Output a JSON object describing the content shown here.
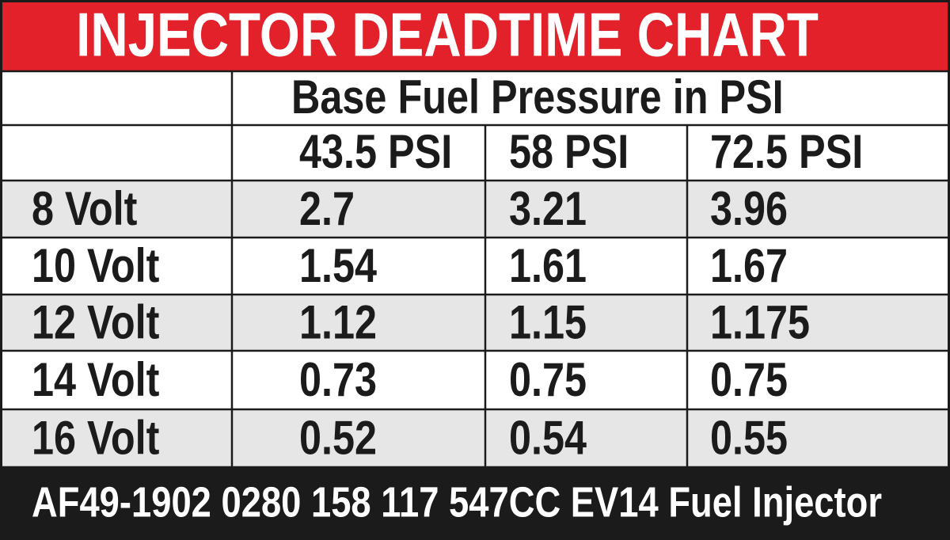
{
  "title": "INJECTOR DEADTIME CHART",
  "table": {
    "group_header": "Base Fuel Pressure in PSI",
    "columns": [
      "43.5 PSI",
      "58 PSI",
      "72.5 PSI"
    ],
    "rows": [
      [
        "8 Volt",
        "2.7",
        "3.21",
        "3.96"
      ],
      [
        "10 Volt",
        "1.54",
        "1.61",
        "1.67"
      ],
      [
        "12 Volt",
        "1.12",
        "1.15",
        "1.175"
      ],
      [
        "14 Volt",
        "0.73",
        "0.75",
        "0.75"
      ],
      [
        "16 Volt",
        "0.52",
        "0.54",
        "0.55"
      ]
    ]
  },
  "footer": "AF49-1902 0280 158 117 547CC EV14 Fuel Injector"
}
